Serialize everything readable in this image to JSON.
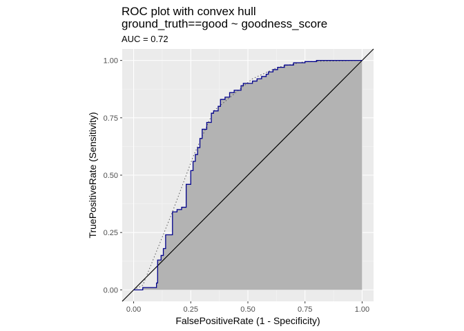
{
  "chart_data": {
    "type": "area",
    "title": "ROC plot with convex hull",
    "subtitle": "ground_truth==good ~ goodness_score",
    "caption": "AUC = 0.72",
    "xlabel": "FalsePositiveRate (1 - Specificity)",
    "ylabel": "TruePositiveRate (Sensitivity)",
    "xlim": [
      -0.05,
      1.05
    ],
    "ylim": [
      -0.05,
      1.05
    ],
    "x_ticks": [
      "0.00",
      "0.25",
      "0.50",
      "0.75",
      "1.00"
    ],
    "y_ticks": [
      "0.00",
      "0.25",
      "0.50",
      "0.75",
      "1.00"
    ],
    "tick_values": [
      0,
      0.25,
      0.5,
      0.75,
      1.0
    ],
    "grid": true,
    "series": [
      {
        "kind": "roc-curve",
        "x": [
          0.0,
          0.04,
          0.04,
          0.1,
          0.1,
          0.105,
          0.105,
          0.12,
          0.12,
          0.13,
          0.13,
          0.14,
          0.14,
          0.17,
          0.17,
          0.17,
          0.17,
          0.19,
          0.19,
          0.21,
          0.21,
          0.23,
          0.23,
          0.25,
          0.25,
          0.26,
          0.26,
          0.27,
          0.27,
          0.28,
          0.28,
          0.29,
          0.29,
          0.3,
          0.3,
          0.31,
          0.31,
          0.32,
          0.32,
          0.34,
          0.34,
          0.35,
          0.35,
          0.37,
          0.37,
          0.38,
          0.38,
          0.4,
          0.4,
          0.42,
          0.42,
          0.44,
          0.44,
          0.47,
          0.47,
          0.48,
          0.48,
          0.5,
          0.5,
          0.52,
          0.52,
          0.54,
          0.54,
          0.56,
          0.56,
          0.58,
          0.58,
          0.59,
          0.59,
          0.61,
          0.61,
          0.63,
          0.63,
          0.66,
          0.66,
          0.7,
          0.7,
          0.75,
          0.75,
          0.8,
          0.8,
          0.9,
          1.0
        ],
        "y": [
          0.0,
          0.0,
          0.01,
          0.01,
          0.03,
          0.03,
          0.13,
          0.13,
          0.15,
          0.15,
          0.18,
          0.18,
          0.24,
          0.24,
          0.34,
          0.34,
          0.34,
          0.34,
          0.35,
          0.35,
          0.36,
          0.36,
          0.46,
          0.46,
          0.52,
          0.52,
          0.56,
          0.56,
          0.59,
          0.59,
          0.62,
          0.62,
          0.66,
          0.66,
          0.7,
          0.7,
          0.7,
          0.7,
          0.73,
          0.73,
          0.77,
          0.77,
          0.78,
          0.78,
          0.8,
          0.8,
          0.83,
          0.83,
          0.84,
          0.84,
          0.86,
          0.86,
          0.87,
          0.87,
          0.89,
          0.89,
          0.9,
          0.9,
          0.9,
          0.9,
          0.91,
          0.91,
          0.92,
          0.92,
          0.93,
          0.93,
          0.94,
          0.94,
          0.95,
          0.95,
          0.96,
          0.96,
          0.97,
          0.97,
          0.98,
          0.98,
          0.99,
          0.99,
          0.995,
          0.995,
          1.0,
          1.0,
          1.0
        ],
        "color": "#00008b",
        "fill": "#b3b3b3"
      },
      {
        "kind": "convex-hull",
        "x": [
          0.0,
          0.04,
          0.17,
          0.26,
          0.35,
          0.52,
          0.63,
          0.75,
          1.0
        ],
        "y": [
          0.0,
          0.02,
          0.34,
          0.58,
          0.78,
          0.92,
          0.97,
          0.995,
          1.0
        ],
        "color": "#555555",
        "style": "dotted"
      },
      {
        "kind": "diagonal",
        "x": [
          -0.05,
          1.05
        ],
        "y": [
          -0.05,
          1.05
        ],
        "color": "#000000"
      }
    ]
  },
  "colors": {
    "panel_background": "#ebebeb",
    "grid_major": "#ffffff",
    "grid_minor": "#f5f5f5"
  }
}
